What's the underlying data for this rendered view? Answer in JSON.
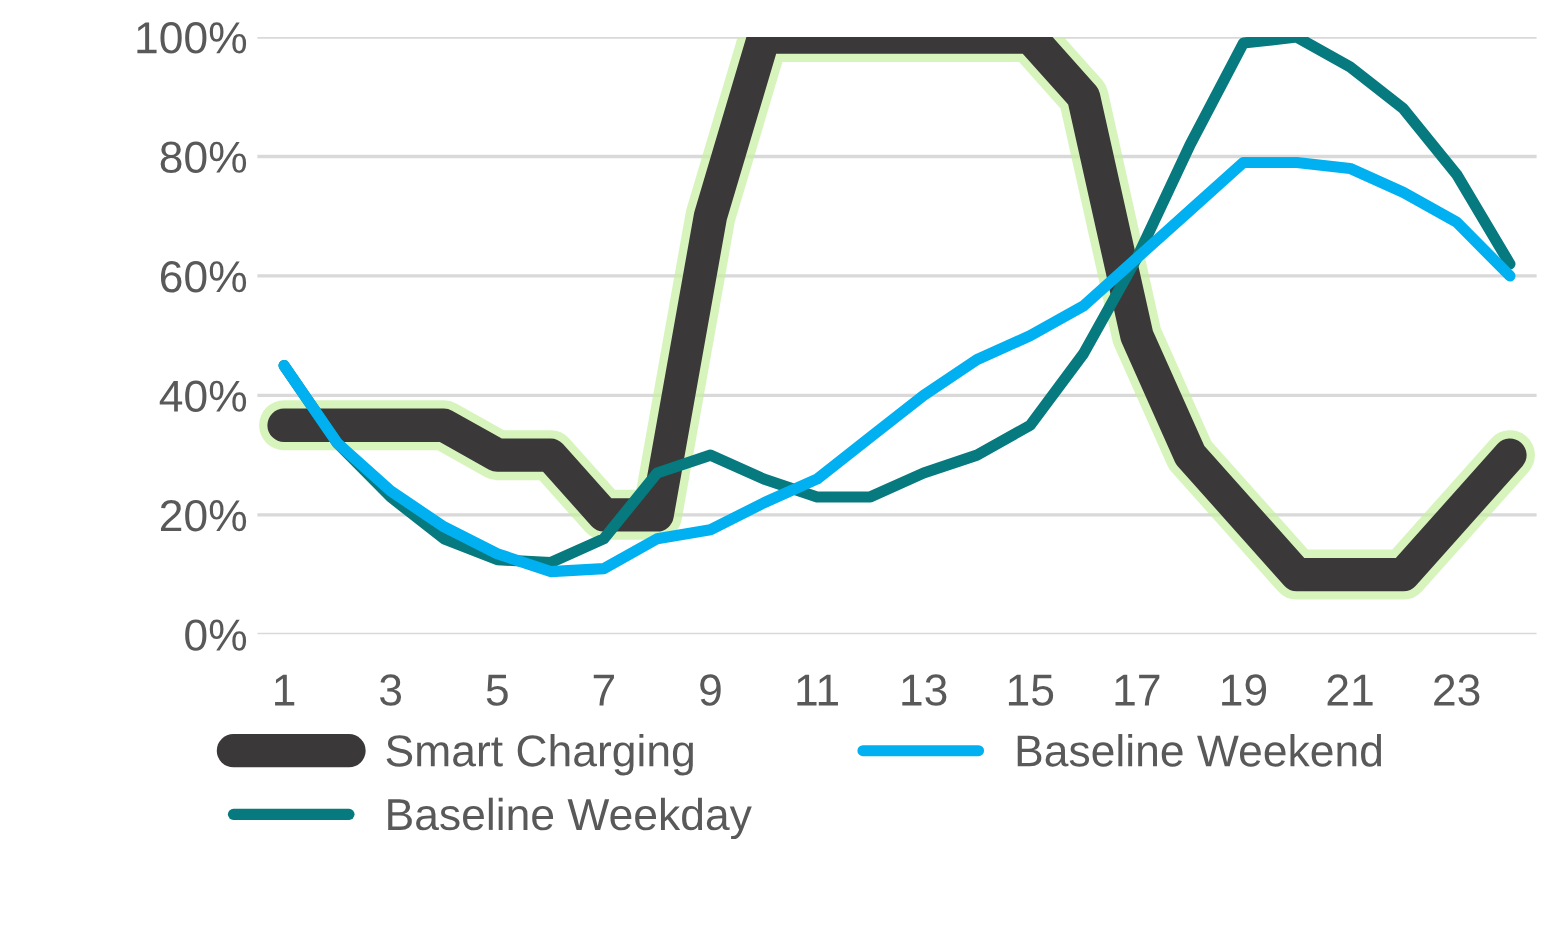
{
  "chart_data": {
    "type": "line",
    "categories": [
      "1",
      null,
      "3",
      null,
      "5",
      null,
      "7",
      null,
      "9",
      null,
      "11",
      null,
      "13",
      null,
      "15",
      null,
      "17",
      null,
      "19",
      null,
      "21",
      null,
      "23",
      null
    ],
    "series": [
      {
        "name": "Smart Charging",
        "color": "#3a3838",
        "values": [
          35,
          35,
          35,
          35,
          30,
          30,
          20,
          20,
          70,
          100,
          100,
          100,
          100,
          100,
          100,
          90,
          50,
          30,
          20,
          10,
          10,
          10,
          20,
          30
        ]
      },
      {
        "name": "Baseline Weekday",
        "color": "#067a7e",
        "values": [
          45,
          32,
          23,
          16,
          12.5,
          12,
          16,
          27,
          30,
          26,
          23,
          23,
          27,
          30,
          35,
          47,
          63,
          82,
          99,
          100,
          95,
          88,
          77,
          62
        ]
      },
      {
        "name": "Baseline Weekend",
        "color": "#00b0f0",
        "values": [
          45,
          32,
          24,
          18,
          13.5,
          10.5,
          11,
          16,
          17.5,
          22,
          26,
          33,
          40,
          46,
          50,
          55,
          63,
          71,
          79,
          79,
          78,
          74,
          69,
          60
        ]
      }
    ],
    "ylim": [
      0,
      100
    ],
    "yticks": [
      {
        "value": 0,
        "label": "0%"
      },
      {
        "value": 20,
        "label": "20%"
      },
      {
        "value": 40,
        "label": "40%"
      },
      {
        "value": 60,
        "label": "60%"
      },
      {
        "value": 80,
        "label": "80%"
      },
      {
        "value": 100,
        "label": "100%"
      }
    ],
    "grid": "y",
    "legend": "bottom",
    "marker": "none",
    "line_style": "solid"
  }
}
